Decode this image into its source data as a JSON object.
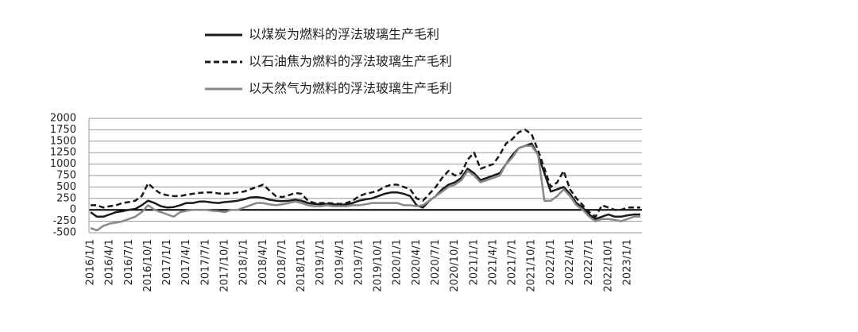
{
  "chart_data": {
    "type": "line",
    "categories": [
      "2016/1/1",
      null,
      null,
      "2016/4/1",
      null,
      null,
      "2016/7/1",
      null,
      null,
      "2016/10/1",
      null,
      null,
      "2017/1/1",
      null,
      null,
      "2017/4/1",
      null,
      null,
      "2017/7/1",
      null,
      null,
      "2017/10/1",
      null,
      null,
      "2018/1/1",
      null,
      null,
      "2018/4/1",
      null,
      null,
      "2018/7/1",
      null,
      null,
      "2018/10/1",
      null,
      null,
      "2019/1/1",
      null,
      null,
      "2019/4/1",
      null,
      null,
      "2019/7/1",
      null,
      null,
      "2019/10/1",
      null,
      null,
      "2020/1/1",
      null,
      null,
      "2020/4/1",
      null,
      null,
      "2020/7/1",
      null,
      null,
      "2020/10/1",
      null,
      null,
      "2021/1/1",
      null,
      null,
      "2021/4/1",
      null,
      null,
      "2021/7/1",
      null,
      null,
      "2021/10/1",
      null,
      null,
      "2022/1/1",
      null,
      null,
      "2022/4/1",
      null,
      null,
      "2022/7/1",
      null,
      null,
      "2022/10/1",
      null,
      null,
      "2023/1/1",
      null,
      null
    ],
    "series": [
      {
        "name": "以煤炭为燃料的浮法玻璃生产毛利",
        "color": "#1a1a1a",
        "line_style": "solid",
        "values": [
          -50,
          -150,
          -150,
          -100,
          -50,
          -30,
          0,
          20,
          100,
          200,
          150,
          80,
          50,
          60,
          100,
          150,
          150,
          180,
          180,
          160,
          150,
          170,
          180,
          200,
          230,
          270,
          280,
          260,
          220,
          200,
          190,
          200,
          220,
          200,
          150,
          130,
          120,
          130,
          120,
          110,
          120,
          150,
          200,
          230,
          250,
          300,
          350,
          380,
          380,
          350,
          300,
          100,
          50,
          200,
          300,
          450,
          550,
          600,
          700,
          900,
          800,
          650,
          700,
          750,
          800,
          1000,
          1200,
          1350,
          1400,
          1450,
          1200,
          800,
          400,
          450,
          500,
          350,
          150,
          50,
          -100,
          -200,
          -150,
          -100,
          -150,
          -150,
          -120,
          -100,
          -100
        ]
      },
      {
        "name": "以石油焦为燃料的浮法玻璃生产毛利",
        "color": "#1a1a1a",
        "line_style": "dashed",
        "values": [
          100,
          100,
          50,
          80,
          100,
          150,
          170,
          200,
          300,
          580,
          450,
          350,
          320,
          300,
          300,
          330,
          350,
          370,
          380,
          380,
          360,
          350,
          360,
          380,
          400,
          450,
          500,
          550,
          420,
          300,
          280,
          320,
          370,
          350,
          200,
          150,
          150,
          150,
          140,
          130,
          150,
          200,
          300,
          350,
          380,
          420,
          500,
          550,
          550,
          500,
          450,
          250,
          200,
          350,
          500,
          700,
          850,
          750,
          800,
          1100,
          1250,
          900,
          950,
          1000,
          1200,
          1450,
          1550,
          1700,
          1750,
          1650,
          1300,
          900,
          500,
          600,
          850,
          450,
          250,
          100,
          -50,
          -150,
          100,
          50,
          0,
          0,
          50,
          50,
          50
        ]
      },
      {
        "name": "以天然气为燃料的浮法玻璃生产毛利",
        "color": "#888888",
        "line_style": "solid",
        "values": [
          -400,
          -450,
          -350,
          -300,
          -280,
          -250,
          -200,
          -150,
          -50,
          100,
          0,
          -50,
          -100,
          -150,
          -50,
          -20,
          0,
          0,
          0,
          -20,
          -30,
          -50,
          0,
          0,
          50,
          100,
          150,
          150,
          120,
          100,
          120,
          150,
          180,
          150,
          100,
          80,
          80,
          100,
          80,
          80,
          80,
          100,
          100,
          120,
          150,
          150,
          150,
          150,
          150,
          100,
          100,
          80,
          100,
          200,
          300,
          400,
          500,
          550,
          650,
          850,
          750,
          600,
          650,
          700,
          750,
          1000,
          1150,
          1350,
          1400,
          1400,
          1200,
          200,
          200,
          300,
          450,
          300,
          100,
          0,
          -150,
          -250,
          -200,
          -200,
          -220,
          -250,
          -200,
          -150,
          -150
        ]
      }
    ],
    "ylim": [
      -500,
      2000
    ],
    "yticks": [
      -500,
      -250,
      0,
      250,
      500,
      750,
      1000,
      1250,
      1500,
      1750,
      2000
    ],
    "grid": true
  }
}
